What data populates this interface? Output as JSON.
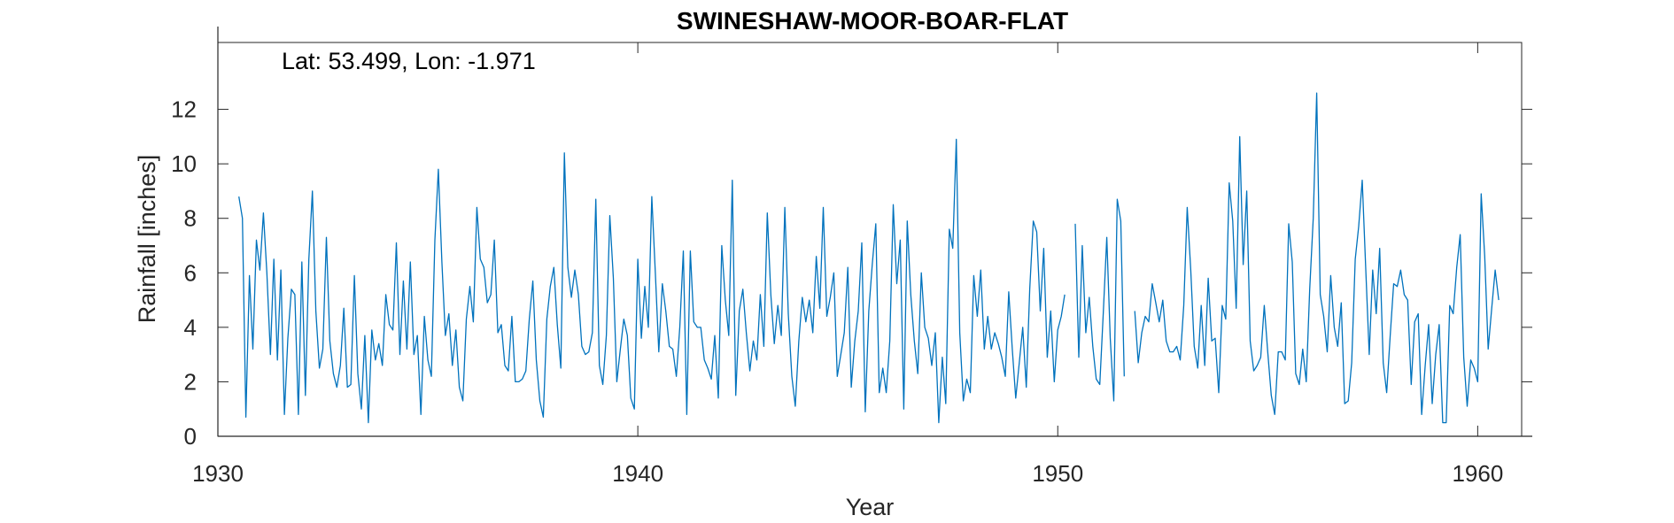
{
  "chart_data": {
    "type": "line",
    "title": "SWINESHAW-MOOR-BOAR-FLAT",
    "annotation": "Lat: 53.499, Lon: -1.971",
    "xlabel": "Year",
    "ylabel": "Rainfall [inches]",
    "xlim": [
      1930,
      1961.3
    ],
    "ylim": [
      0,
      14
    ],
    "xticks": [
      1930,
      1940,
      1950,
      1960
    ],
    "yticks": [
      0,
      2,
      4,
      6,
      8,
      10,
      12
    ],
    "grid": false,
    "line_color": "#0072BD",
    "series": [
      {
        "segments": [
          {
            "start_year": 1930.5,
            "step_months": 1,
            "values": [
              8.8,
              8.0,
              0.7,
              5.9,
              3.2,
              7.2,
              6.1,
              8.2,
              6.0,
              3.0,
              6.5,
              2.8,
              6.1,
              0.8,
              3.6,
              5.4,
              5.2,
              0.8,
              6.4,
              1.5,
              6.5,
              9.0,
              4.6,
              2.5,
              3.2,
              7.3,
              3.5,
              2.3,
              1.8,
              2.6,
              4.7,
              1.8,
              1.9,
              5.9,
              2.3,
              1.0,
              3.7,
              0.5,
              3.9,
              2.8,
              3.4,
              2.6,
              5.2,
              4.1,
              3.9,
              7.1,
              3.0,
              5.7,
              3.2,
              6.4,
              3.0,
              3.7,
              0.8,
              4.4,
              2.8,
              2.2,
              7.2,
              9.8,
              6.4,
              3.7,
              4.5,
              2.6,
              3.9,
              1.8,
              1.3,
              4.3,
              5.5,
              4.2,
              8.4,
              6.5,
              6.2,
              4.9,
              5.2,
              7.2,
              3.8,
              4.1,
              2.6,
              2.4,
              4.4,
              2.0,
              2.0,
              2.1,
              2.4,
              4.3,
              5.7,
              2.8,
              1.3,
              0.7,
              4.3,
              5.5,
              6.2,
              4.1,
              2.5,
              10.4,
              6.2,
              5.1,
              6.1,
              5.2,
              3.3,
              3.0,
              3.1,
              3.8,
              8.7,
              2.6,
              1.9,
              3.7,
              8.1,
              5.8,
              2.0,
              3.2,
              4.3,
              3.7,
              1.4,
              1.0,
              6.5,
              3.6,
              5.5,
              4.0,
              8.8,
              6.0,
              3.1,
              5.6,
              4.6,
              3.3,
              3.2,
              2.2,
              4.0,
              6.8,
              0.8,
              6.8,
              4.2,
              4.0,
              4.0,
              2.8,
              2.5,
              2.1,
              3.7,
              1.4,
              7.0,
              5.0,
              3.7,
              9.4,
              1.5,
              4.6,
              5.4,
              3.8,
              2.4,
              3.5,
              2.8,
              5.2,
              3.3,
              8.2,
              5.2,
              3.4,
              4.8,
              3.7,
              8.4,
              4.5,
              2.2,
              1.1,
              3.5,
              5.1,
              4.2,
              5.0,
              3.8,
              6.6,
              4.7,
              8.4,
              4.4,
              5.1,
              6.0,
              2.2,
              3.0,
              3.8,
              6.2,
              1.8,
              3.5,
              4.6,
              7.1,
              0.9,
              4.6,
              6.3,
              7.8,
              1.6,
              2.5,
              1.6,
              3.5,
              8.5,
              5.6,
              7.2,
              1.0,
              7.9,
              5.2,
              3.5,
              2.3,
              6.0,
              4.0,
              3.6,
              2.6,
              3.8,
              0.5,
              2.9,
              1.2,
              7.6,
              6.9,
              10.9,
              3.8,
              1.3,
              2.1,
              1.6,
              5.9,
              4.4,
              6.1,
              3.2,
              4.4,
              3.2,
              3.8,
              3.4,
              2.9,
              2.2,
              5.3,
              3.2,
              1.4,
              2.7,
              4.0,
              1.8,
              5.4,
              7.9,
              7.5,
              4.6,
              6.9,
              2.9,
              4.6,
              2.0,
              3.9,
              4.4,
              5.2
            ]
          },
          {
            "start_year": 1950.4167,
            "step_months": 1,
            "values": [
              7.8,
              2.9,
              7.0,
              3.8,
              5.1,
              3.3,
              2.1,
              1.9,
              4.5,
              7.3,
              3.6,
              1.3,
              8.7,
              7.9,
              2.2
            ]
          },
          {
            "start_year": 1951.8333,
            "step_months": 1,
            "values": [
              4.6,
              2.7,
              3.8,
              4.4,
              4.2,
              5.6,
              4.9,
              4.2,
              5.0,
              3.5,
              3.1,
              3.1,
              3.3,
              2.8,
              4.8,
              8.4,
              6.1,
              3.3,
              2.5,
              4.8,
              2.6,
              5.8,
              3.5,
              3.6,
              1.6,
              4.8,
              4.3,
              9.3,
              7.9,
              4.7,
              11.0,
              6.3,
              9.0,
              3.5,
              2.4,
              2.6,
              2.9,
              4.8,
              3.1,
              1.5,
              0.8,
              3.1,
              3.1,
              2.8,
              7.8,
              6.4,
              2.3,
              1.9,
              3.2,
              2.0,
              5.4,
              8.0,
              12.6,
              5.2,
              4.4,
              3.1,
              5.9,
              4.0,
              3.3,
              4.9,
              1.2,
              1.3,
              2.7,
              6.5,
              7.7,
              9.4,
              6.2,
              3.0,
              6.1,
              4.5,
              6.9,
              2.7,
              1.6,
              3.7,
              5.6,
              5.5,
              6.1,
              5.2,
              5.0,
              1.9,
              4.2,
              4.5,
              0.8,
              2.6,
              4.1,
              1.2,
              3.0,
              4.1,
              0.5,
              0.5,
              4.8,
              4.5,
              6.2,
              7.4,
              2.9,
              1.1,
              2.8,
              2.5,
              2.0,
              8.9,
              6.6,
              3.2,
              4.7,
              6.1,
              5.0
            ]
          }
        ]
      }
    ]
  }
}
